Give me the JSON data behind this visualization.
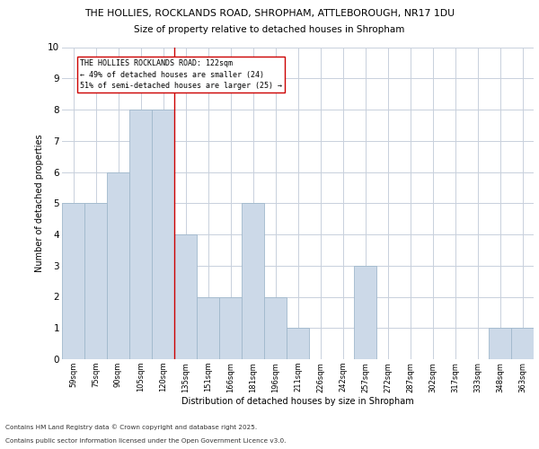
{
  "title_line1": "THE HOLLIES, ROCKLANDS ROAD, SHROPHAM, ATTLEBOROUGH, NR17 1DU",
  "title_line2": "Size of property relative to detached houses in Shropham",
  "xlabel": "Distribution of detached houses by size in Shropham",
  "ylabel": "Number of detached properties",
  "categories": [
    "59sqm",
    "75sqm",
    "90sqm",
    "105sqm",
    "120sqm",
    "135sqm",
    "151sqm",
    "166sqm",
    "181sqm",
    "196sqm",
    "211sqm",
    "226sqm",
    "242sqm",
    "257sqm",
    "272sqm",
    "287sqm",
    "302sqm",
    "317sqm",
    "333sqm",
    "348sqm",
    "363sqm"
  ],
  "values": [
    5,
    5,
    6,
    8,
    8,
    4,
    2,
    2,
    5,
    2,
    1,
    0,
    0,
    3,
    0,
    0,
    0,
    0,
    0,
    1,
    1
  ],
  "bar_color": "#ccd9e8",
  "bar_edge_color": "#a0b8cc",
  "red_line_x": 4.5,
  "ylim": [
    0,
    10
  ],
  "yticks": [
    0,
    1,
    2,
    3,
    4,
    5,
    6,
    7,
    8,
    9,
    10
  ],
  "annotation_text": "THE HOLLIES ROCKLANDS ROAD: 122sqm\n← 49% of detached houses are smaller (24)\n51% of semi-detached houses are larger (25) →",
  "annotation_box_color": "#ffffff",
  "annotation_border_color": "#cc0000",
  "footnote_line1": "Contains HM Land Registry data © Crown copyright and database right 2025.",
  "footnote_line2": "Contains public sector information licensed under the Open Government Licence v3.0.",
  "background_color": "#ffffff",
  "grid_color": "#c8d0dc"
}
